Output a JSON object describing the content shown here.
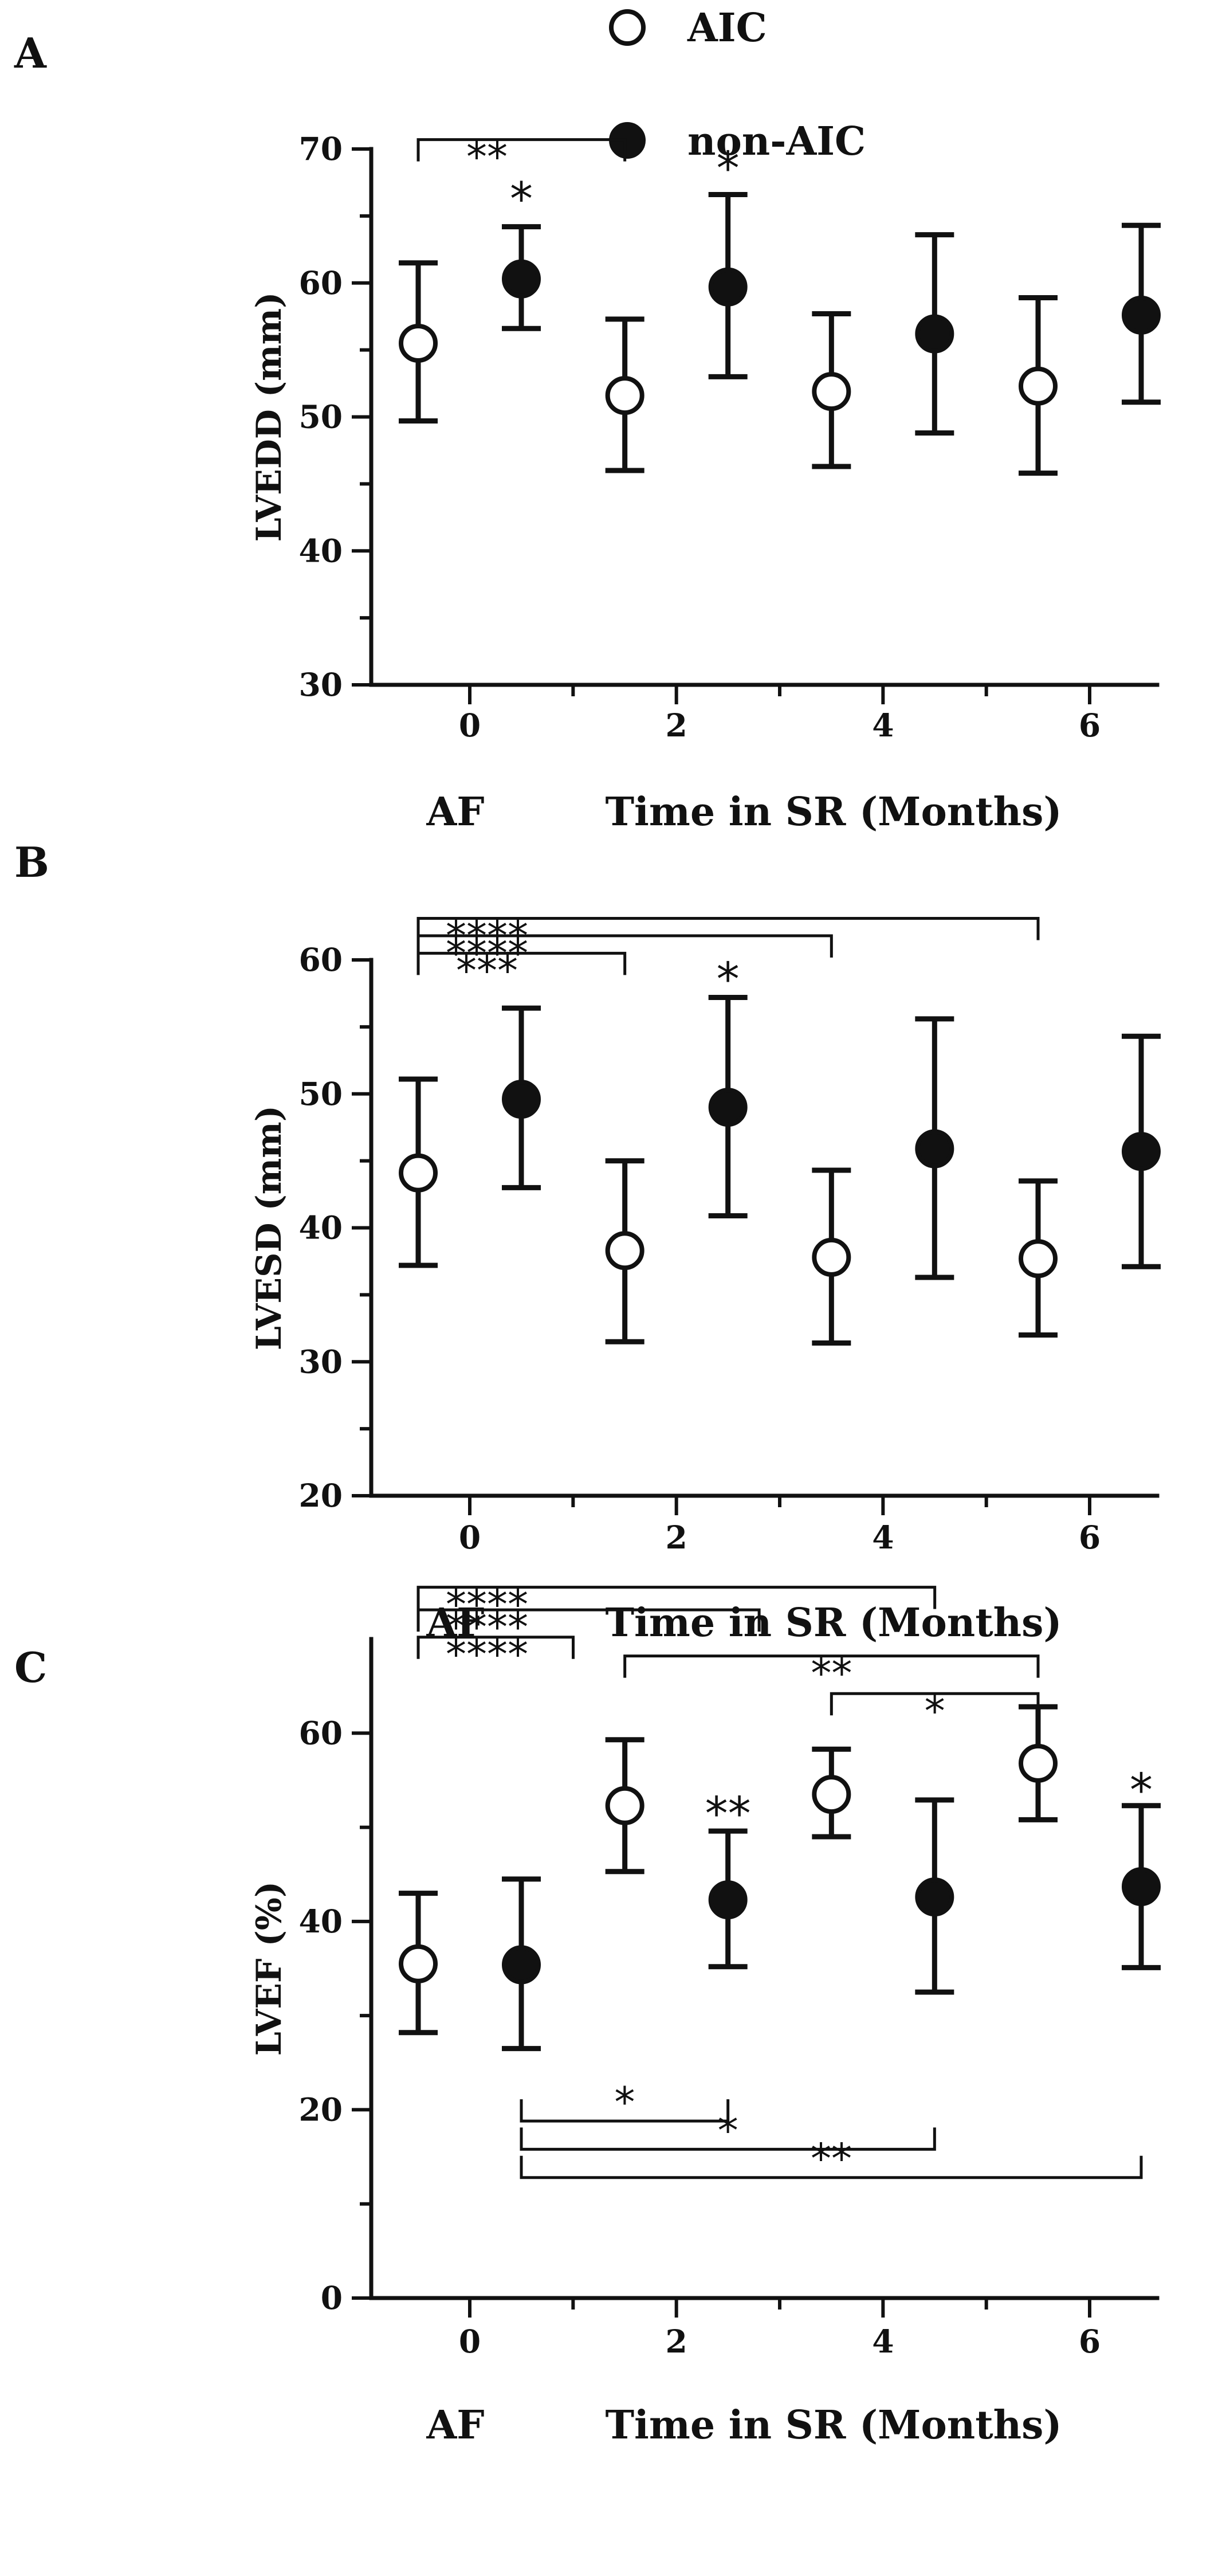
{
  "legend": {
    "items": [
      {
        "label": "AIC",
        "marker": "open-circle"
      },
      {
        "label": "non-AIC",
        "marker": "filled-circle"
      }
    ]
  },
  "chart_data": [
    {
      "type": "scatter",
      "panel_label": "A",
      "ylabel": "LVEDD (mm)",
      "xlabel_left": "AF",
      "xlabel": "Time in SR (Months)",
      "ylim": [
        30,
        70
      ],
      "yticks": [
        30,
        40,
        50,
        60,
        70
      ],
      "xticks": [
        0,
        2,
        4,
        6
      ],
      "series": [
        {
          "name": "AIC",
          "x": [
            0,
            2,
            4,
            6
          ],
          "mean": [
            55.5,
            51.6,
            51.9,
            52.3
          ],
          "lower": [
            49.7,
            46.0,
            46.3,
            45.8
          ],
          "upper": [
            61.5,
            57.3,
            57.7,
            58.9
          ]
        },
        {
          "name": "non-AIC",
          "x": [
            0,
            2,
            4,
            6
          ],
          "mean": [
            60.3,
            59.7,
            56.2,
            57.6
          ],
          "lower": [
            56.6,
            53.0,
            48.8,
            51.1
          ],
          "upper": [
            64.2,
            66.6,
            63.6,
            64.3
          ]
        }
      ],
      "annotations": [
        {
          "text": "*",
          "series": "non-AIC",
          "x": 0,
          "y": 67
        },
        {
          "text": "*",
          "series": "non-AIC",
          "x": 2,
          "y": 69.3
        }
      ],
      "brackets": [
        {
          "text": "**",
          "x1": 0,
          "x2": 2,
          "x1_series": "AIC",
          "x2_series": "AIC",
          "y": 70.7,
          "drop": "down"
        }
      ]
    },
    {
      "type": "scatter",
      "panel_label": "B",
      "ylabel": "LVESD (mm)",
      "xlabel_left": "AF",
      "xlabel": "Time in SR (Months)",
      "ylim": [
        20,
        60
      ],
      "yticks": [
        20,
        30,
        40,
        50,
        60
      ],
      "xticks": [
        0,
        2,
        4,
        6
      ],
      "series": [
        {
          "name": "AIC",
          "x": [
            0,
            2,
            4,
            6
          ],
          "mean": [
            44.1,
            38.3,
            37.8,
            37.7
          ],
          "lower": [
            37.2,
            31.5,
            31.4,
            32.0
          ],
          "upper": [
            51.1,
            45.0,
            44.3,
            43.5
          ]
        },
        {
          "name": "non-AIC",
          "x": [
            0,
            2,
            4,
            6
          ],
          "mean": [
            49.6,
            49.0,
            45.9,
            45.7
          ],
          "lower": [
            43.0,
            40.9,
            36.3,
            37.1
          ],
          "upper": [
            56.4,
            57.2,
            55.6,
            54.3
          ]
        }
      ],
      "annotations": [
        {
          "text": "*",
          "series": "non-AIC",
          "x": 2,
          "y": 59.3
        }
      ],
      "brackets": [
        {
          "text": "****",
          "x1": 0,
          "x2": 6,
          "x1_series": "AIC",
          "x2_series": "AIC",
          "y": 63.1,
          "drop": "down"
        },
        {
          "text": "****",
          "x1": 0,
          "x2": 4,
          "x1_series": "AIC",
          "x2_series": "AIC",
          "y": 61.8,
          "drop": "down"
        },
        {
          "text": "***",
          "x1": 0,
          "x2": 2,
          "x1_series": "AIC",
          "x2_series": "AIC",
          "y": 60.5,
          "drop": "down"
        }
      ]
    },
    {
      "type": "scatter",
      "panel_label": "C",
      "ylabel": "LVEF (%)",
      "xlabel_left": "AF",
      "xlabel": "Time in SR (Months)",
      "ylim": [
        0,
        70
      ],
      "yticks": [
        0,
        20,
        40,
        60
      ],
      "xticks": [
        0,
        2,
        4,
        6
      ],
      "series": [
        {
          "name": "AIC",
          "x": [
            0,
            2,
            4,
            6
          ],
          "mean": [
            35.5,
            52.3,
            53.5,
            56.8
          ],
          "lower": [
            28.2,
            45.3,
            49.0,
            50.8
          ],
          "upper": [
            43.0,
            59.3,
            58.3,
            62.8
          ]
        },
        {
          "name": "non-AIC",
          "x": [
            0,
            2,
            4,
            6
          ],
          "mean": [
            35.4,
            42.3,
            42.6,
            43.7
          ],
          "lower": [
            26.5,
            35.2,
            32.5,
            35.1
          ],
          "upper": [
            44.5,
            49.6,
            52.9,
            52.3
          ]
        }
      ],
      "annotations": [
        {
          "text": "**",
          "series": "non-AIC",
          "x": 2,
          "y": 52.5
        },
        {
          "text": "*",
          "series": "non-AIC",
          "x": 6,
          "y": 55
        }
      ],
      "brackets": [
        {
          "text": "****",
          "x1": 0,
          "x2": 5,
          "x1_series": "AIC",
          "x2_series": "AIC",
          "y": 75.5,
          "drop": "down"
        },
        {
          "text": "****",
          "x1": 0,
          "x2": 3.3,
          "x1_series": "AIC",
          "x2_series": "AIC",
          "y": 73.1,
          "drop": "down"
        },
        {
          "text": "****",
          "x1": 0,
          "x2": 1.5,
          "x1_series": "AIC",
          "x2_series": "AIC",
          "y": 70.2,
          "drop": "down"
        },
        {
          "text": "**",
          "x1": 2,
          "x2": 6,
          "x1_series": "AIC",
          "x2_series": "AIC",
          "y": 68.2,
          "drop": "down"
        },
        {
          "text": "*",
          "x1": 4,
          "x2": 6,
          "x1_series": "AIC",
          "x2_series": "AIC",
          "y": 64.2,
          "drop": "down"
        },
        {
          "text": "*",
          "x1": 0,
          "x2": 2,
          "x1_series": "non-AIC",
          "x2_series": "non-AIC",
          "y": 18.8,
          "drop": "up"
        },
        {
          "text": "*",
          "x1": 0,
          "x2": 4,
          "x1_series": "non-AIC",
          "x2_series": "non-AIC",
          "y": 15.8,
          "drop": "up"
        },
        {
          "text": "**",
          "x1": 0,
          "x2": 6,
          "x1_series": "non-AIC",
          "x2_series": "non-AIC",
          "y": 12.8,
          "drop": "up"
        }
      ]
    }
  ]
}
